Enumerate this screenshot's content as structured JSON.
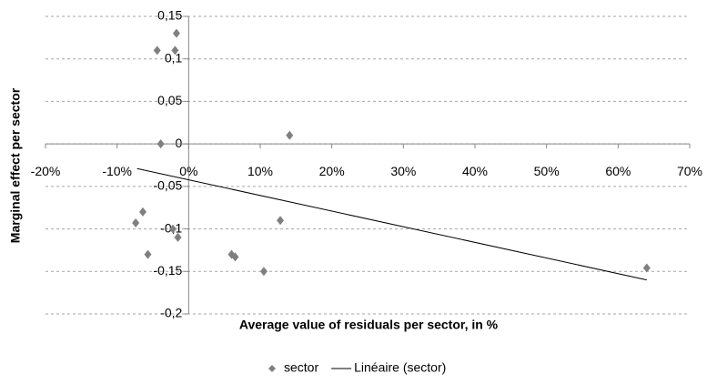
{
  "chart_data": {
    "type": "scatter",
    "xlabel": "Average value of residuals per sector, in %",
    "ylabel": "Marginal effect per sector",
    "xlim": [
      -20,
      70
    ],
    "xticks": [
      {
        "value": -20,
        "label": "-20%"
      },
      {
        "value": -10,
        "label": "-10%"
      },
      {
        "value": 0,
        "label": "0%"
      },
      {
        "value": 10,
        "label": "10%"
      },
      {
        "value": 20,
        "label": "20%"
      },
      {
        "value": 30,
        "label": "30%"
      },
      {
        "value": 40,
        "label": "40%"
      },
      {
        "value": 50,
        "label": "50%"
      },
      {
        "value": 60,
        "label": "60%"
      },
      {
        "value": 70,
        "label": "70%"
      }
    ],
    "ylim": [
      -0.2,
      0.15
    ],
    "yticks": [
      {
        "value": -0.2,
        "label": "-0,2"
      },
      {
        "value": -0.15,
        "label": "-0,15"
      },
      {
        "value": -0.1,
        "label": "-0,1"
      },
      {
        "value": -0.05,
        "label": "-0,05"
      },
      0,
      {
        "value": 0.05,
        "label": "0,05"
      },
      {
        "value": 0.1,
        "label": "0,1"
      },
      {
        "value": 0.15,
        "label": "0,15"
      }
    ],
    "grid": true,
    "legend": "bottom",
    "series": [
      {
        "name": "sector",
        "type": "scatter",
        "color": "#7f7f7f",
        "x": [
          -1.7,
          -4.4,
          -1.9,
          -3.9,
          14.1,
          -6.4,
          -7.4,
          -2.2,
          -1.5,
          -5.7,
          6.0,
          6.5,
          12.8,
          10.5,
          64.0
        ],
        "values": [
          0.13,
          0.11,
          0.11,
          0,
          0.01,
          -0.08,
          -0.093,
          -0.1,
          -0.11,
          -0.13,
          -0.13,
          -0.133,
          -0.09,
          -0.15,
          -0.146
        ]
      },
      {
        "name": "Linéaire (sector)",
        "type": "line",
        "color": "#000000",
        "x": [
          -7.2,
          64.0
        ],
        "values": [
          -0.029,
          -0.16
        ]
      }
    ]
  }
}
